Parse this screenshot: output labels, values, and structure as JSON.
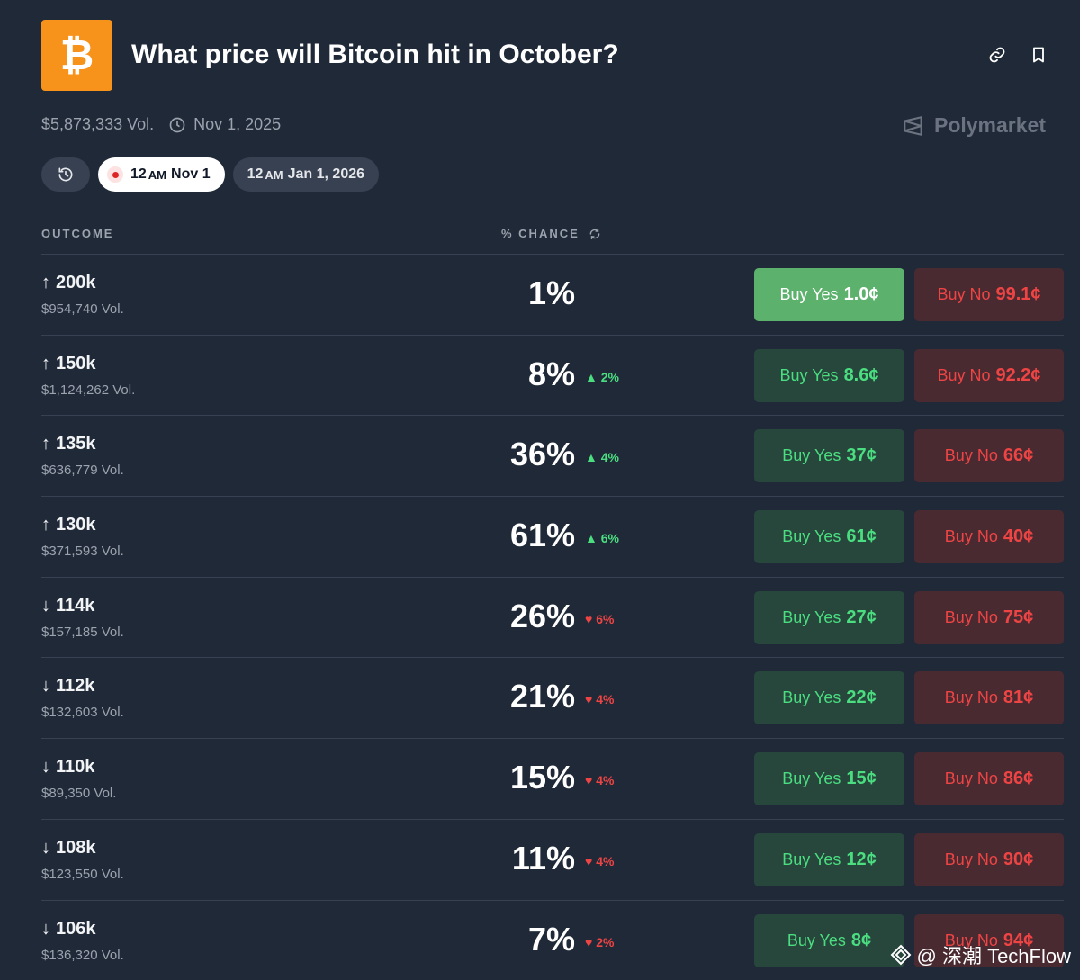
{
  "header": {
    "title": "What price will Bitcoin hit in October?",
    "logo_symbol": "₿",
    "logo_color": "#f7931a"
  },
  "meta": {
    "volume": "$5,873,333 Vol.",
    "end_date": "Nov 1, 2025"
  },
  "brand": {
    "name": "Polymarket"
  },
  "pills": [
    {
      "time": "12",
      "ampm": "AM",
      "date": "Nov 1"
    },
    {
      "time": "12",
      "ampm": "AM",
      "date": "Jan 1, 2026"
    }
  ],
  "columns": {
    "outcome": "OUTCOME",
    "chance": "% CHANCE"
  },
  "outcomes": [
    {
      "direction": "↑",
      "label": "200k",
      "volume": "$954,740 Vol.",
      "chance": "1%",
      "delta": "",
      "delta_dir": "",
      "yes_label": "Buy Yes",
      "yes_price": "1.0¢",
      "no_label": "Buy No",
      "no_price": "99.1¢"
    },
    {
      "direction": "↑",
      "label": "150k",
      "volume": "$1,124,262 Vol.",
      "chance": "8%",
      "delta": "▲ 2%",
      "delta_dir": "up",
      "yes_label": "Buy Yes",
      "yes_price": "8.6¢",
      "no_label": "Buy No",
      "no_price": "92.2¢"
    },
    {
      "direction": "↑",
      "label": "135k",
      "volume": "$636,779 Vol.",
      "chance": "36%",
      "delta": "▲ 4%",
      "delta_dir": "up",
      "yes_label": "Buy Yes",
      "yes_price": "37¢",
      "no_label": "Buy No",
      "no_price": "66¢"
    },
    {
      "direction": "↑",
      "label": "130k",
      "volume": "$371,593 Vol.",
      "chance": "61%",
      "delta": "▲ 6%",
      "delta_dir": "up",
      "yes_label": "Buy Yes",
      "yes_price": "61¢",
      "no_label": "Buy No",
      "no_price": "40¢"
    },
    {
      "direction": "↓",
      "label": "114k",
      "volume": "$157,185 Vol.",
      "chance": "26%",
      "delta": "♥ 6%",
      "delta_dir": "down",
      "yes_label": "Buy Yes",
      "yes_price": "27¢",
      "no_label": "Buy No",
      "no_price": "75¢"
    },
    {
      "direction": "↓",
      "label": "112k",
      "volume": "$132,603 Vol.",
      "chance": "21%",
      "delta": "♥ 4%",
      "delta_dir": "down",
      "yes_label": "Buy Yes",
      "yes_price": "22¢",
      "no_label": "Buy No",
      "no_price": "81¢"
    },
    {
      "direction": "↓",
      "label": "110k",
      "volume": "$89,350 Vol.",
      "chance": "15%",
      "delta": "♥ 4%",
      "delta_dir": "down",
      "yes_label": "Buy Yes",
      "yes_price": "15¢",
      "no_label": "Buy No",
      "no_price": "86¢"
    },
    {
      "direction": "↓",
      "label": "108k",
      "volume": "$123,550 Vol.",
      "chance": "11%",
      "delta": "♥ 4%",
      "delta_dir": "down",
      "yes_label": "Buy Yes",
      "yes_price": "12¢",
      "no_label": "Buy No",
      "no_price": "90¢"
    },
    {
      "direction": "↓",
      "label": "106k",
      "volume": "$136,320 Vol.",
      "chance": "7%",
      "delta": "♥ 2%",
      "delta_dir": "down",
      "yes_label": "Buy Yes",
      "yes_price": "8¢",
      "no_label": "Buy No",
      "no_price": "94¢"
    }
  ],
  "watermark": {
    "text": "@ 深潮 TechFlow"
  },
  "colors": {
    "yes_green": "#4ade80",
    "yes_primary": "#5cb16c",
    "no_red": "#ef4444",
    "background": "#1f2937"
  }
}
